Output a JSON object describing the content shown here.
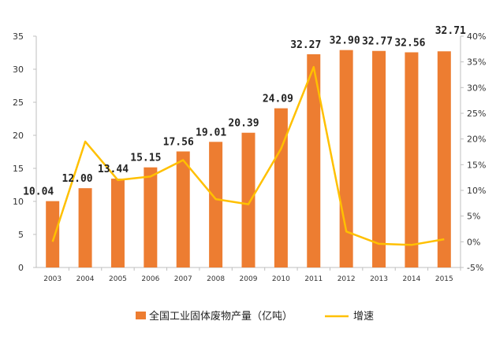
{
  "chart_data": {
    "type": "bar",
    "categories": [
      "2003",
      "2004",
      "2005",
      "2006",
      "2007",
      "2008",
      "2009",
      "2010",
      "2011",
      "2012",
      "2013",
      "2014",
      "2015"
    ],
    "series": [
      {
        "name": "全国工业固体废物产量（亿吨）",
        "type": "bar",
        "axis": "left",
        "values": [
          10.04,
          12.0,
          13.44,
          15.15,
          17.56,
          19.01,
          20.39,
          24.09,
          32.27,
          32.9,
          32.77,
          32.56,
          32.71
        ],
        "data_labels": [
          "10.04",
          "12.00",
          "13.44",
          "15.15",
          "17.56",
          "19.01",
          "20.39",
          "24.09",
          "32.27",
          "32.90",
          "32.77",
          "32.56",
          "32.71"
        ],
        "color": "#ED7D31"
      },
      {
        "name": "增速",
        "type": "line",
        "axis": "right",
        "values": [
          0.0,
          19.5,
          12.0,
          12.7,
          15.9,
          8.3,
          7.3,
          18.1,
          34.0,
          2.0,
          -0.4,
          -0.6,
          0.5
        ],
        "color": "#FFC000"
      }
    ],
    "y_left": {
      "range": [
        0,
        35
      ],
      "ticks": [
        "0",
        "5",
        "10",
        "15",
        "20",
        "25",
        "30",
        "35"
      ]
    },
    "y_right": {
      "range": [
        -5,
        40
      ],
      "ticks": [
        "-5%",
        "0%",
        "5%",
        "10%",
        "15%",
        "20%",
        "25%",
        "30%",
        "35%",
        "40%"
      ]
    },
    "grid": false,
    "legend": {
      "position": "bottom",
      "items": [
        "全国工业固体废物产量（亿吨）",
        "增速"
      ]
    }
  }
}
